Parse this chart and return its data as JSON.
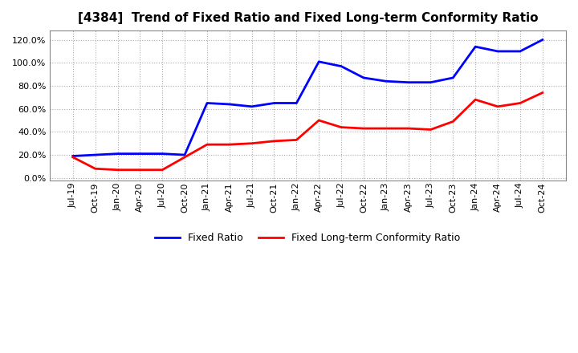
{
  "title": "[4384]  Trend of Fixed Ratio and Fixed Long-term Conformity Ratio",
  "x_labels": [
    "Jul-19",
    "Oct-19",
    "Jan-20",
    "Apr-20",
    "Jul-20",
    "Oct-20",
    "Jan-21",
    "Apr-21",
    "Jul-21",
    "Oct-21",
    "Jan-22",
    "Apr-22",
    "Jul-22",
    "Oct-22",
    "Jan-23",
    "Apr-23",
    "Jul-23",
    "Oct-23",
    "Jan-24",
    "Apr-24",
    "Jul-24",
    "Oct-24"
  ],
  "fixed_ratio": [
    19.0,
    20.0,
    21.0,
    21.0,
    21.0,
    20.0,
    65.0,
    64.0,
    62.0,
    65.0,
    65.0,
    101.0,
    97.0,
    87.0,
    84.0,
    83.0,
    83.0,
    87.0,
    114.0,
    110.0,
    110.0,
    120.0
  ],
  "fixed_lt_ratio": [
    18.0,
    8.0,
    7.0,
    7.0,
    7.0,
    18.0,
    29.0,
    29.0,
    30.0,
    32.0,
    33.0,
    50.0,
    44.0,
    43.0,
    43.0,
    43.0,
    42.0,
    49.0,
    68.0,
    62.0,
    65.0,
    74.0
  ],
  "fixed_ratio_color": "#0000FF",
  "fixed_lt_ratio_color": "#FF0000",
  "ylim_min": -2.0,
  "ylim_max": 128.0,
  "yticks": [
    0.0,
    20.0,
    40.0,
    60.0,
    80.0,
    100.0,
    120.0
  ],
  "background_color": "#FFFFFF",
  "plot_bg_color": "#FFFFFF",
  "grid_color": "#AAAAAA",
  "legend_fixed_ratio": "Fixed Ratio",
  "legend_fixed_lt_ratio": "Fixed Long-term Conformity Ratio",
  "title_fontsize": 11,
  "tick_fontsize": 8,
  "legend_fontsize": 9,
  "linewidth": 2.0
}
